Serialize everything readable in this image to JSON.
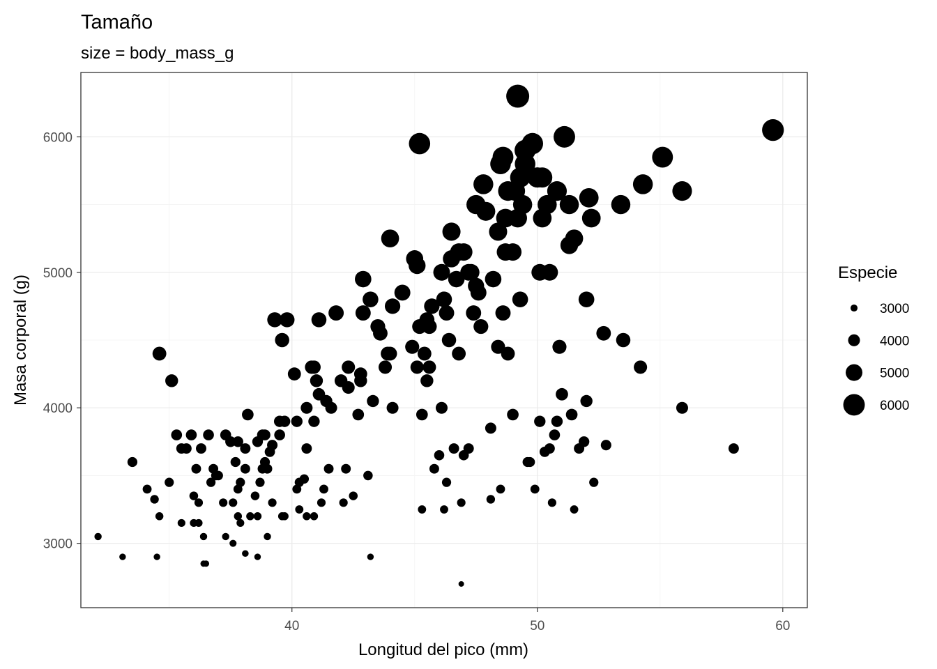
{
  "chart_data": {
    "type": "scatter",
    "title": "Tamaño",
    "subtitle": "size = body_mass_g",
    "xlabel": "Longitud del pico (mm)",
    "ylabel": "Masa corporal (g)",
    "xlim": [
      31.4,
      61.0
    ],
    "ylim": [
      2525,
      6475
    ],
    "xticks": [
      40,
      50,
      60
    ],
    "yticks": [
      3000,
      4000,
      5000,
      6000
    ],
    "grid": true,
    "legend": {
      "title": "Especie",
      "placement": "right",
      "entries": [
        {
          "label": "3000",
          "value": 3000
        },
        {
          "label": "4000",
          "value": 4000
        },
        {
          "label": "5000",
          "value": 5000
        },
        {
          "label": "6000",
          "value": 6000
        }
      ]
    },
    "point_color": "#000000",
    "points": [
      [
        32.1,
        3050
      ],
      [
        33.1,
        2900
      ],
      [
        34.5,
        2900
      ],
      [
        36.4,
        2850
      ],
      [
        36.5,
        2850
      ],
      [
        37.6,
        3000
      ],
      [
        38.1,
        2925
      ],
      [
        38.6,
        2900
      ],
      [
        39.0,
        3050
      ],
      [
        43.2,
        2900
      ],
      [
        46.9,
        2700
      ],
      [
        33.5,
        3600
      ],
      [
        34.1,
        3400
      ],
      [
        34.4,
        3325
      ],
      [
        34.6,
        3200
      ],
      [
        34.6,
        4400
      ],
      [
        35.0,
        3450
      ],
      [
        35.1,
        4200
      ],
      [
        35.3,
        3800
      ],
      [
        35.5,
        3700
      ],
      [
        35.7,
        3700
      ],
      [
        35.9,
        3800
      ],
      [
        36.0,
        3350
      ],
      [
        36.1,
        3550
      ],
      [
        36.2,
        3300
      ],
      [
        36.2,
        3150
      ],
      [
        36.3,
        3700
      ],
      [
        36.4,
        3050
      ],
      [
        36.6,
        3800
      ],
      [
        36.7,
        3450
      ],
      [
        36.8,
        3550
      ],
      [
        37.0,
        3500
      ],
      [
        37.2,
        3300
      ],
      [
        37.3,
        3800
      ],
      [
        37.6,
        3300
      ],
      [
        37.7,
        3600
      ],
      [
        37.8,
        3750
      ],
      [
        37.8,
        3200
      ],
      [
        37.9,
        3450
      ],
      [
        38.1,
        3700
      ],
      [
        38.2,
        3950
      ],
      [
        38.3,
        3200
      ],
      [
        38.5,
        3350
      ],
      [
        38.6,
        3750
      ],
      [
        38.7,
        3450
      ],
      [
        38.8,
        3800
      ],
      [
        38.9,
        3600
      ],
      [
        39.0,
        3550
      ],
      [
        39.1,
        3675
      ],
      [
        39.2,
        3725
      ],
      [
        39.3,
        4650
      ],
      [
        39.5,
        3800
      ],
      [
        39.6,
        4500
      ],
      [
        39.7,
        3200
      ],
      [
        39.8,
        4650
      ],
      [
        40.1,
        4250
      ],
      [
        40.2,
        3400
      ],
      [
        40.3,
        3450
      ],
      [
        40.5,
        3475
      ],
      [
        40.6,
        3700
      ],
      [
        40.8,
        4300
      ],
      [
        40.9,
        3900
      ],
      [
        41.1,
        4650
      ],
      [
        41.3,
        3400
      ],
      [
        41.4,
        4050
      ],
      [
        41.5,
        3550
      ],
      [
        41.6,
        4000
      ],
      [
        41.8,
        4700
      ],
      [
        42.0,
        4200
      ],
      [
        42.1,
        3300
      ],
      [
        42.2,
        3550
      ],
      [
        42.3,
        4150
      ],
      [
        42.5,
        3350
      ],
      [
        42.7,
        3950
      ],
      [
        42.8,
        4250
      ],
      [
        42.9,
        4950
      ],
      [
        43.1,
        3500
      ],
      [
        43.3,
        4050
      ],
      [
        43.5,
        4600
      ],
      [
        43.8,
        4300
      ],
      [
        44.0,
        4400
      ],
      [
        44.1,
        4000
      ],
      [
        44.5,
        4850
      ],
      [
        45.0,
        5100
      ],
      [
        45.2,
        5950
      ],
      [
        45.3,
        3950
      ],
      [
        45.4,
        4400
      ],
      [
        45.5,
        4200
      ],
      [
        45.7,
        4750
      ],
      [
        45.8,
        3550
      ],
      [
        46.0,
        3650
      ],
      [
        46.1,
        5000
      ],
      [
        46.2,
        4800
      ],
      [
        46.4,
        4500
      ],
      [
        46.5,
        5300
      ],
      [
        46.6,
        3700
      ],
      [
        46.8,
        4400
      ],
      [
        47.0,
        3650
      ],
      [
        47.2,
        5000
      ],
      [
        47.4,
        4700
      ],
      [
        47.5,
        5500
      ],
      [
        47.6,
        4850
      ],
      [
        47.8,
        5650
      ],
      [
        48.1,
        3850
      ],
      [
        48.2,
        4950
      ],
      [
        48.4,
        5300
      ],
      [
        48.5,
        5800
      ],
      [
        48.6,
        4700
      ],
      [
        48.7,
        5400
      ],
      [
        48.8,
        4400
      ],
      [
        49.0,
        5150
      ],
      [
        49.1,
        5600
      ],
      [
        49.2,
        6300
      ],
      [
        49.3,
        5700
      ],
      [
        49.5,
        5800
      ],
      [
        49.7,
        3600
      ],
      [
        49.8,
        5950
      ],
      [
        50.0,
        5700
      ],
      [
        50.1,
        3900
      ],
      [
        50.2,
        5400
      ],
      [
        50.4,
        5500
      ],
      [
        50.5,
        5000
      ],
      [
        50.8,
        3900
      ],
      [
        51.0,
        4100
      ],
      [
        51.1,
        6000
      ],
      [
        51.3,
        5200
      ],
      [
        51.5,
        5250
      ],
      [
        51.7,
        3700
      ],
      [
        52.0,
        4800
      ],
      [
        52.1,
        5550
      ],
      [
        52.2,
        5400
      ],
      [
        52.7,
        4550
      ],
      [
        53.4,
        5500
      ],
      [
        53.5,
        4500
      ],
      [
        54.2,
        4300
      ],
      [
        54.3,
        5650
      ],
      [
        55.1,
        5850
      ],
      [
        55.9,
        4000
      ],
      [
        55.9,
        5600
      ],
      [
        58.0,
        3700
      ],
      [
        59.6,
        6050
      ],
      [
        47.3,
        5000
      ],
      [
        48.8,
        5600
      ],
      [
        49.4,
        5500
      ],
      [
        50.0,
        5700
      ],
      [
        45.5,
        4650
      ],
      [
        46.7,
        4950
      ],
      [
        45.1,
        4300
      ],
      [
        46.3,
        4700
      ],
      [
        47.7,
        4600
      ],
      [
        48.4,
        4450
      ],
      [
        49.3,
        4800
      ],
      [
        50.9,
        4450
      ],
      [
        46.1,
        4000
      ],
      [
        45.6,
        4300
      ],
      [
        49.6,
        3600
      ],
      [
        50.3,
        3675
      ],
      [
        51.4,
        3950
      ],
      [
        52.0,
        4050
      ],
      [
        52.3,
        3450
      ],
      [
        51.5,
        3250
      ],
      [
        50.6,
        3300
      ],
      [
        49.9,
        3400
      ],
      [
        48.5,
        3400
      ],
      [
        48.1,
        3325
      ],
      [
        46.9,
        3300
      ],
      [
        46.3,
        3450
      ],
      [
        45.3,
        3250
      ],
      [
        46.2,
        3250
      ],
      [
        47.2,
        3700
      ],
      [
        49.0,
        3950
      ],
      [
        50.5,
        3700
      ],
      [
        51.9,
        3750
      ],
      [
        52.8,
        3725
      ],
      [
        50.7,
        3800
      ],
      [
        48.7,
        5150
      ],
      [
        49.2,
        5400
      ],
      [
        50.1,
        5000
      ],
      [
        46.5,
        5100
      ],
      [
        47.0,
        5150
      ],
      [
        47.9,
        5450
      ],
      [
        44.9,
        4450
      ],
      [
        45.2,
        4600
      ],
      [
        44.0,
        5250
      ],
      [
        42.9,
        4700
      ],
      [
        43.6,
        4550
      ],
      [
        43.9,
        4400
      ],
      [
        41.2,
        3300
      ],
      [
        40.9,
        3200
      ],
      [
        40.6,
        3200
      ],
      [
        40.3,
        3250
      ],
      [
        39.6,
        3200
      ],
      [
        39.2,
        3300
      ],
      [
        38.6,
        3200
      ],
      [
        37.9,
        3150
      ],
      [
        37.3,
        3050
      ],
      [
        36.0,
        3150
      ],
      [
        35.5,
        3150
      ],
      [
        38.8,
        3550
      ],
      [
        39.7,
        3900
      ],
      [
        40.6,
        4000
      ],
      [
        41.0,
        4200
      ],
      [
        40.2,
        3900
      ],
      [
        38.9,
        3800
      ],
      [
        37.5,
        3750
      ],
      [
        36.9,
        3500
      ],
      [
        37.8,
        3400
      ],
      [
        38.1,
        3550
      ],
      [
        39.5,
        3900
      ],
      [
        40.9,
        4300
      ],
      [
        41.1,
        4100
      ],
      [
        42.3,
        4300
      ],
      [
        42.8,
        4200
      ],
      [
        43.2,
        4800
      ],
      [
        44.1,
        4750
      ],
      [
        45.1,
        5050
      ],
      [
        45.6,
        4600
      ],
      [
        46.8,
        5150
      ],
      [
        47.5,
        4900
      ],
      [
        48.6,
        5850
      ],
      [
        49.5,
        5900
      ],
      [
        50.2,
        5700
      ],
      [
        50.8,
        5600
      ],
      [
        51.3,
        5500
      ]
    ]
  }
}
